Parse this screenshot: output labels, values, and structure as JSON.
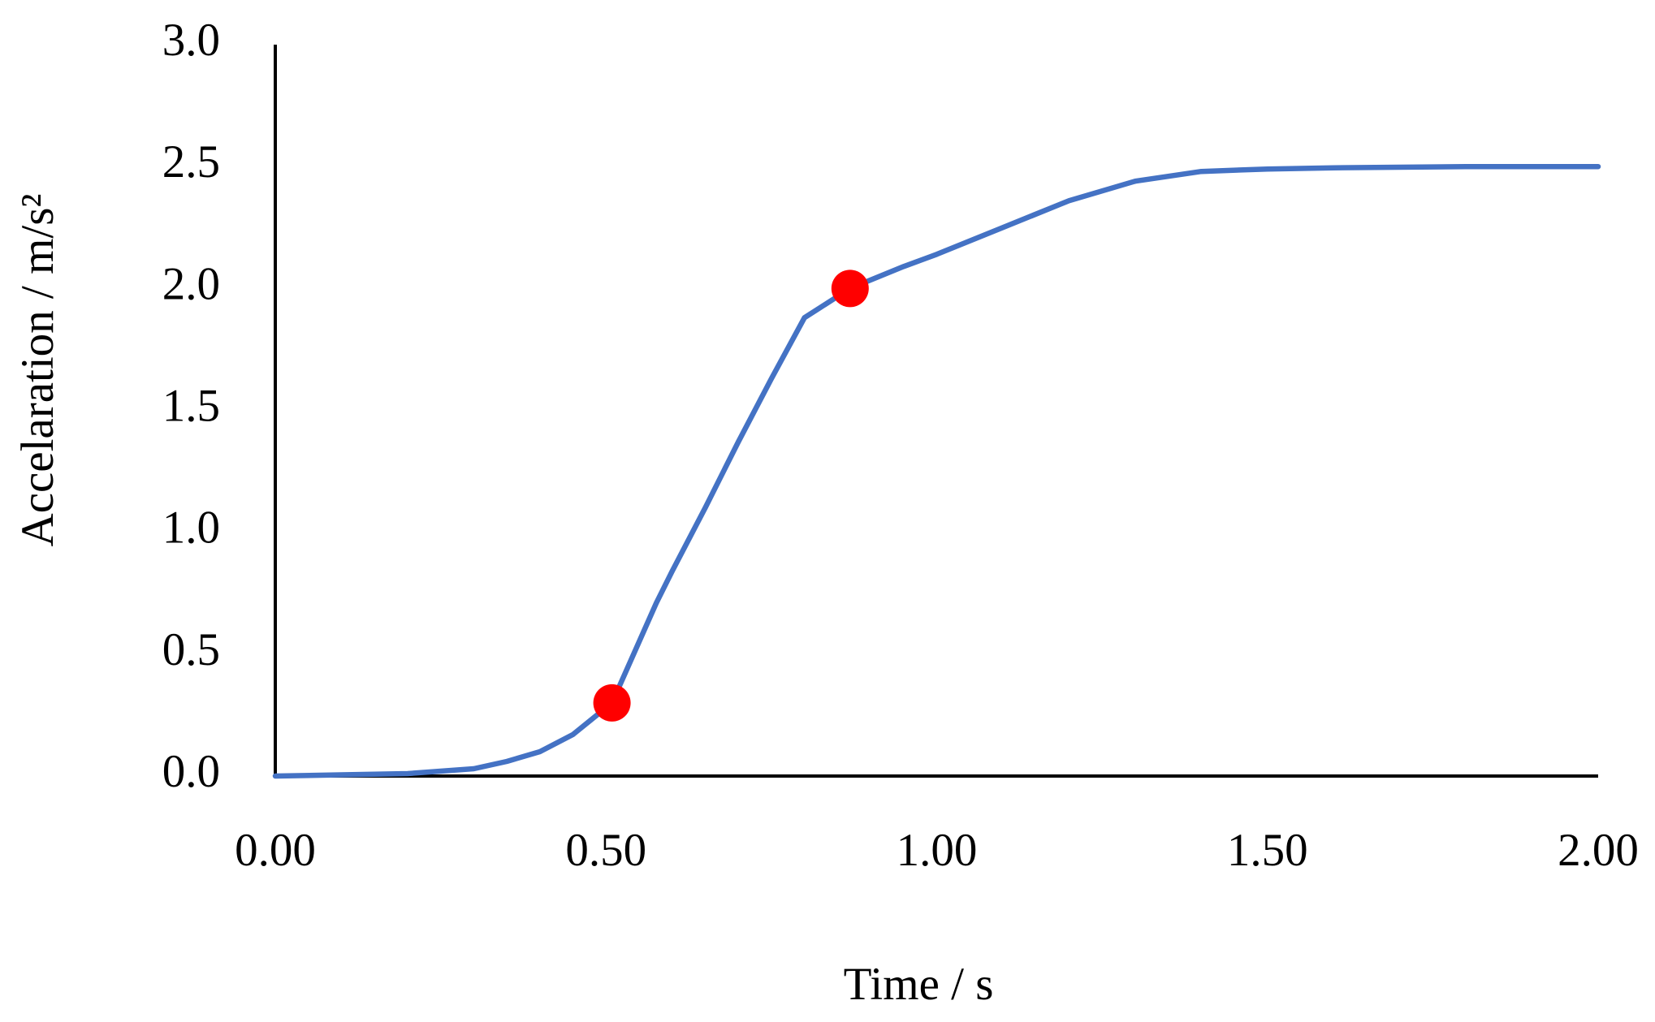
{
  "chart_data": {
    "type": "line",
    "x_label": "Time / s",
    "y_label": "Accelaration / m/s²",
    "x": [
      0,
      0.1,
      0.2,
      0.3,
      0.35,
      0.4,
      0.45,
      0.509,
      0.576,
      0.6,
      0.65,
      0.7,
      0.75,
      0.8,
      0.869,
      0.95,
      1.0,
      1.1,
      1.2,
      1.3,
      1.4,
      1.5,
      1.6,
      1.8,
      2.0
    ],
    "values": [
      0,
      0.005,
      0.01,
      0.03,
      0.06,
      0.1,
      0.17,
      0.3,
      0.71,
      0.84,
      1.1,
      1.37,
      1.63,
      1.88,
      2.0,
      2.09,
      2.14,
      2.25,
      2.36,
      2.44,
      2.48,
      2.49,
      2.495,
      2.5,
      2.5
    ],
    "color": "#4472c4",
    "points": {
      "x": [
        0.509,
        0.869
      ],
      "values": [
        0.3,
        2.0
      ],
      "color": "#ff0000"
    },
    "xlim": [
      0,
      2
    ],
    "ylim": [
      0,
      3
    ],
    "xticks": [
      {
        "value": 0,
        "label": "0.00"
      },
      {
        "value": 0.5,
        "label": "0.50"
      },
      {
        "value": 1,
        "label": "1.00"
      },
      {
        "value": 1.5,
        "label": "1.50"
      },
      {
        "value": 2,
        "label": "2.00"
      }
    ],
    "yticks": [
      {
        "value": 0,
        "label": "0.0"
      },
      0.5,
      {
        "value": 1,
        "label": "1.0"
      },
      1.5,
      {
        "value": 2,
        "label": "2.0"
      },
      2.5,
      {
        "value": 3,
        "label": "3.0"
      }
    ]
  }
}
